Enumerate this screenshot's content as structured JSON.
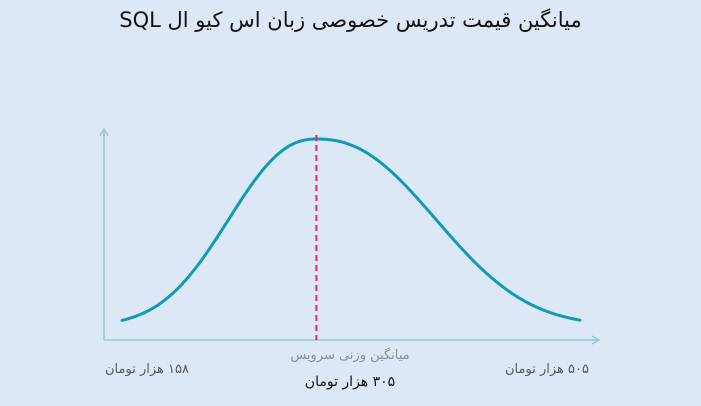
{
  "chart_data": {
    "type": "line",
    "title": "میانگین قیمت تدریس خصوصی زبان اس کیو ال SQL",
    "x_min_label": "۱۵۸ هزار تومان",
    "x_max_label": "۵۰۵ هزار تومان",
    "mean_caption": "میانگین وزنی سرویس",
    "mean_value_label": "۳۰۵ هزار تومان",
    "x_range": [
      158,
      505
    ],
    "mean": 305,
    "curve_color": "#119ab8",
    "mean_line_color": "#f0245a",
    "axis_color": "#9fc3d4",
    "grid": false
  }
}
